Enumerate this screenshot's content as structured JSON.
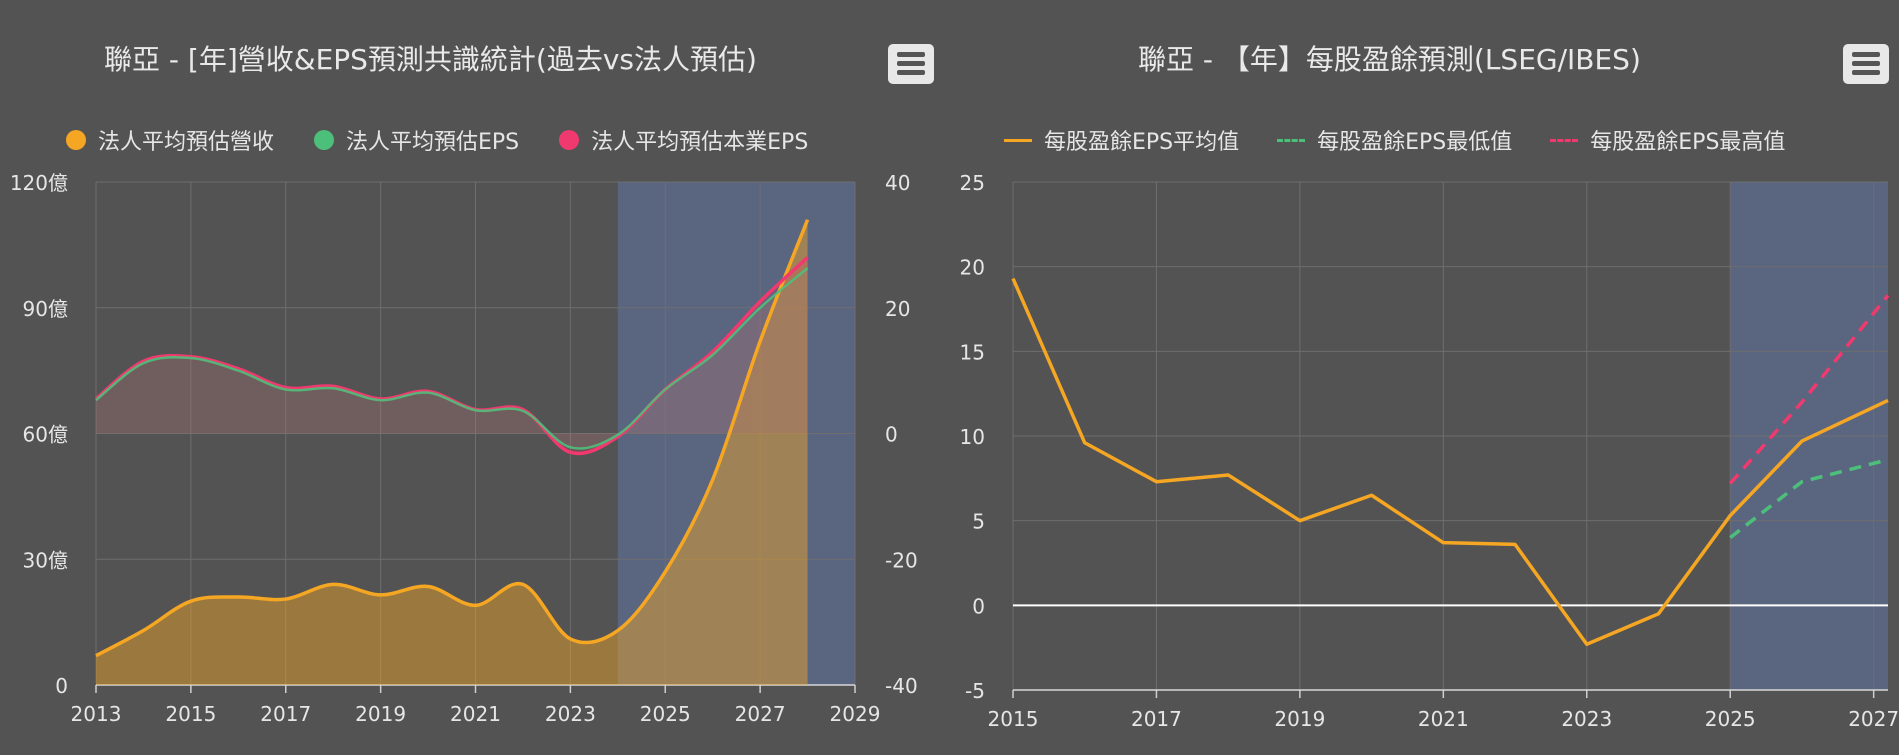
{
  "colors": {
    "revenue": "#f5a623",
    "eps": "#4cc07a",
    "core_eps": "#f0396f",
    "forecast_bg": "#5a6580",
    "grid": "#6e6e6e"
  },
  "chart_data": [
    {
      "type": "area",
      "title": "聯亞 - [年]營收&EPS預測共識統計(過去vs法人預估)",
      "legend": [
        "法人平均預估營收",
        "法人平均預估EPS",
        "法人平均預估本業EPS"
      ],
      "legend_position": "top",
      "x_ticks": [
        "2013",
        "2015",
        "2017",
        "2019",
        "2021",
        "2023",
        "2025",
        "2027",
        "2029"
      ],
      "y_left_ticks": [
        "0",
        "30億",
        "60億",
        "90億",
        "120億"
      ],
      "y_right_ticks": [
        "-40",
        "-20",
        "0",
        "20",
        "40"
      ],
      "xlim": [
        2013,
        2029
      ],
      "ylim_left": [
        0,
        120
      ],
      "ylim_right": [
        -40,
        40
      ],
      "forecast_range": [
        2024,
        2029
      ],
      "x": [
        2013,
        2014,
        2015,
        2016,
        2017,
        2018,
        2019,
        2020,
        2021,
        2022,
        2023,
        2024,
        2025,
        2026,
        2027,
        2028
      ],
      "series": [
        {
          "name": "法人平均預估營收",
          "axis": "left",
          "values": [
            7,
            13,
            20,
            21,
            20.5,
            24,
            21.5,
            23.5,
            19,
            24,
            11,
            13,
            27,
            49,
            82,
            111
          ]
        },
        {
          "name": "法人平均預估EPS",
          "axis": "right",
          "values": [
            5.3,
            11.2,
            12,
            10,
            7,
            7.2,
            5.3,
            6.5,
            3.7,
            3.6,
            -2.2,
            -0.2,
            7,
            12.5,
            20,
            26.3
          ]
        },
        {
          "name": "法人平均預估本業EPS",
          "axis": "right",
          "values": [
            5.5,
            11.5,
            12.2,
            10.3,
            7.3,
            7.5,
            5.5,
            6.7,
            3.8,
            3.8,
            -3,
            -0.5,
            7,
            13,
            21,
            28
          ]
        }
      ]
    },
    {
      "type": "line",
      "title": "聯亞 - 【年】每股盈餘預測(LSEG/IBES)",
      "legend": [
        "每股盈餘EPS平均值",
        "每股盈餘EPS最低值",
        "每股盈餘EPS最高值"
      ],
      "legend_position": "top",
      "x_ticks": [
        "2015",
        "2017",
        "2019",
        "2021",
        "2023",
        "2025",
        "2027"
      ],
      "y_ticks": [
        "-5",
        "0",
        "5",
        "10",
        "15",
        "20",
        "25"
      ],
      "xlim": [
        2015,
        2027.2
      ],
      "ylim": [
        -5,
        25
      ],
      "forecast_range": [
        2025,
        2027.2
      ],
      "series": [
        {
          "name": "每股盈餘EPS平均值",
          "style": "solid",
          "x": [
            2015,
            2016,
            2017,
            2018,
            2019,
            2020,
            2021,
            2022,
            2023,
            2024,
            2025,
            2026,
            2027.2
          ],
          "values": [
            19.3,
            9.6,
            7.3,
            7.7,
            5,
            6.5,
            3.7,
            3.6,
            -2.3,
            -0.5,
            5.3,
            9.7,
            12.1
          ]
        },
        {
          "name": "每股盈餘EPS最低值",
          "style": "dashed",
          "x": [
            2025,
            2026,
            2027.2
          ],
          "values": [
            4.0,
            7.3,
            8.6
          ]
        },
        {
          "name": "每股盈餘EPS最高值",
          "style": "dashed",
          "x": [
            2025,
            2026,
            2027.2
          ],
          "values": [
            7.2,
            12.0,
            18.3
          ]
        }
      ]
    }
  ]
}
